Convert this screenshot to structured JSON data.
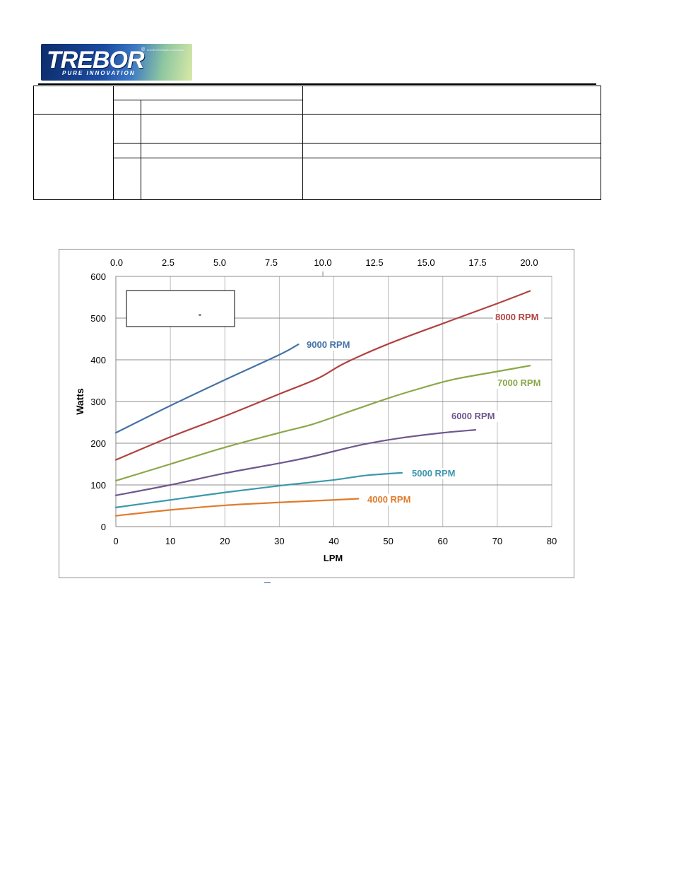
{
  "header": {
    "logo_word": "TREBOR",
    "logo_tagline": "PURE INNOVATION",
    "logo_small_text": "A Unit of Entegris Corporation",
    "logo_mark": "®"
  },
  "colors": {
    "rpm_9000": "#4672a8",
    "rpm_8000": "#b04340",
    "rpm_7000": "#8aa84a",
    "rpm_6000": "#70578e",
    "rpm_5000": "#3d97ad",
    "rpm_4000": "#e07b2c"
  },
  "chart_data": {
    "type": "line",
    "title": "",
    "xlabel": "LPM",
    "ylabel": "Watts",
    "xlim": [
      0,
      80
    ],
    "ylim": [
      0,
      600
    ],
    "x_ticks": [
      0,
      10,
      20,
      30,
      40,
      50,
      60,
      70,
      80
    ],
    "y_ticks": [
      0,
      100,
      200,
      300,
      400,
      500,
      600
    ],
    "secondary_x_ticks": [
      "0.0",
      "2.5",
      "5.0",
      "7.5",
      "10.0",
      "12.5",
      "15.0",
      "17.5",
      "20.0"
    ],
    "grid": true,
    "legend_box_text": "°",
    "series": [
      {
        "name": "9000 RPM",
        "x": [
          0,
          10,
          20,
          30,
          33.5
        ],
        "y": [
          225,
          290,
          352,
          412,
          437
        ]
      },
      {
        "name": "8000 RPM",
        "x": [
          0,
          10,
          20,
          30,
          37,
          42,
          50,
          60,
          70,
          76
        ],
        "y": [
          160,
          215,
          265,
          318,
          355,
          392,
          438,
          487,
          535,
          565
        ]
      },
      {
        "name": "7000 RPM",
        "x": [
          0,
          10,
          20,
          30,
          36,
          42,
          50,
          56,
          62,
          70,
          76
        ],
        "y": [
          110,
          150,
          190,
          225,
          245,
          272,
          308,
          332,
          353,
          372,
          386
        ]
      },
      {
        "name": "6000 RPM",
        "x": [
          0,
          10,
          20,
          30,
          36,
          45,
          52,
          60,
          66
        ],
        "y": [
          75,
          100,
          128,
          152,
          168,
          196,
          212,
          225,
          232
        ]
      },
      {
        "name": "5000 RPM",
        "x": [
          0,
          10,
          20,
          30,
          40,
          46,
          52.5
        ],
        "y": [
          46,
          64,
          82,
          98,
          112,
          123,
          129
        ]
      },
      {
        "name": "4000 RPM",
        "x": [
          0,
          10,
          20,
          30,
          40,
          44.5
        ],
        "y": [
          26,
          40,
          51,
          58,
          64,
          67
        ]
      }
    ]
  }
}
